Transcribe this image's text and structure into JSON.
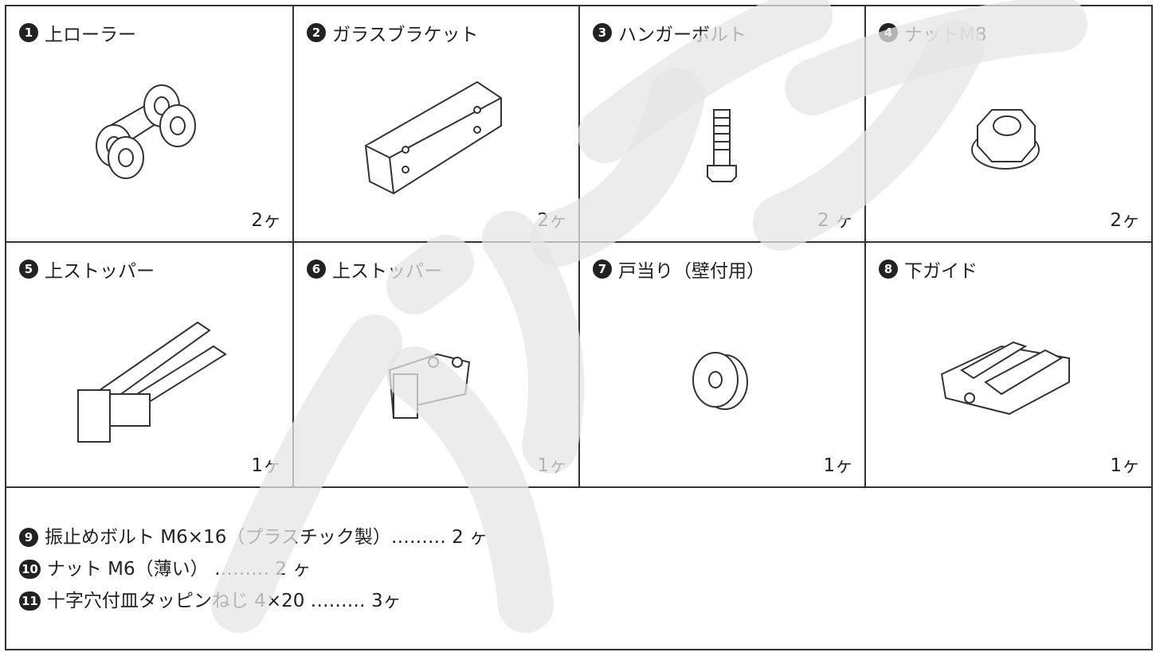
{
  "parts": [
    {
      "number": "1",
      "name": "上ローラー",
      "quantity": "2ヶ"
    },
    {
      "number": "2",
      "name": "ガラスブラケット",
      "quantity": "2ヶ"
    },
    {
      "number": "3",
      "name": "ハンガーボルト",
      "quantity": "2 ヶ"
    },
    {
      "number": "4",
      "name": "ナットM8",
      "quantity": "2ヶ"
    },
    {
      "number": "5",
      "name": "上ストッパー",
      "quantity": "1ヶ"
    },
    {
      "number": "6",
      "name": "上ストッパー",
      "quantity": "1ヶ"
    },
    {
      "number": "7",
      "name": "戸当り（壁付用）",
      "quantity": "1ヶ"
    },
    {
      "number": "8",
      "name": "下ガイド",
      "quantity": "1ヶ"
    }
  ],
  "accessories": [
    {
      "number": "9",
      "text": "振止めボルト M6×16（プラスチック製）……… 2 ヶ"
    },
    {
      "number": "10",
      "text": "ナット M6（薄い） ……… 2 ヶ"
    },
    {
      "number": "11",
      "text": "十字穴付皿タッピンねじ 4×20 ……… 3ヶ"
    }
  ]
}
